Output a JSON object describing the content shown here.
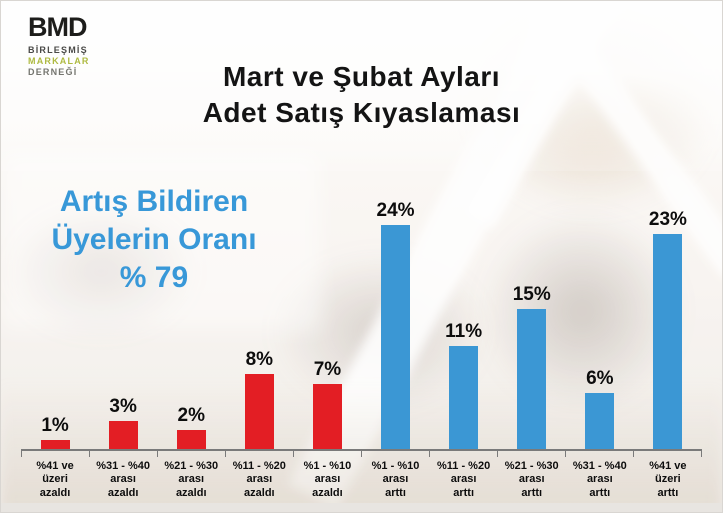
{
  "slide": {
    "title_line1": "Mart ve Şubat Ayları",
    "title_line2": "Adet Satış Kıyaslaması"
  },
  "logo": {
    "main": "BMD",
    "sub1": "BİRLEŞMİŞ",
    "sub2": "MARKALAR",
    "sub3": "DERNEĞİ",
    "colors": {
      "main": "#1d1d1b",
      "sub1": "#4a4a48",
      "sub2": "#aeba40",
      "sub3": "#75756f"
    }
  },
  "stat": {
    "line1": "Artış Bildiren",
    "line2": "Üyelerin Oranı",
    "line3": "% 79",
    "color": "#3898d8"
  },
  "chart_data": {
    "type": "bar",
    "title": "Mart ve Şubat Ayları Adet Satış Kıyaslaması",
    "categories": [
      "%41 ve\nüzeri\nazaldı",
      "%31 - %40\narası\nazaldı",
      "%21 - %30\narası\nazaldı",
      "%11 - %20\narası\nazaldı",
      "%1 - %10\narası\nazaldı",
      "%1 - %10\narası\narttı",
      "%11 - %20\narası\narttı",
      "%21 - %30\narası\narttı",
      "%31 - %40\narası\narttı",
      "%41 ve\nüzeri\narttı"
    ],
    "values": [
      1,
      3,
      2,
      8,
      7,
      24,
      11,
      15,
      6,
      23
    ],
    "value_labels": [
      "1%",
      "3%",
      "2%",
      "8%",
      "7%",
      "24%",
      "11%",
      "15%",
      "6%",
      "23%"
    ],
    "bar_colors": [
      "#e31e24",
      "#e31e24",
      "#e31e24",
      "#e31e24",
      "#e31e24",
      "#3b97d4",
      "#3b97d4",
      "#3b97d4",
      "#3b97d4",
      "#3b97d4"
    ],
    "bar_groups": [
      "decrease",
      "decrease",
      "decrease",
      "decrease",
      "decrease",
      "increase",
      "increase",
      "increase",
      "increase",
      "increase"
    ],
    "decrease_color": "#e31e24",
    "increase_color": "#3b97d4",
    "xlabel": "",
    "ylabel": "",
    "ylim": [
      0,
      27
    ],
    "grid": false,
    "legend": false,
    "axis_color": "#7a7a7a"
  }
}
